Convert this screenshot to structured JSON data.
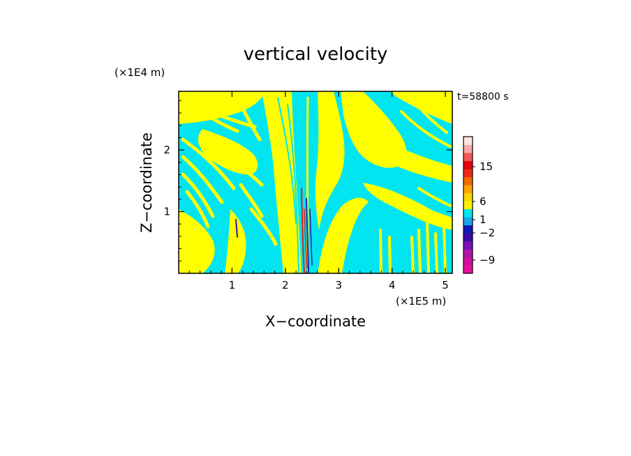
{
  "chart_data": {
    "type": "heatmap",
    "title": "vertical velocity",
    "xlabel": "X−coordinate",
    "ylabel": "Z−coordinate",
    "x_unit_label": "(×1E5 m)",
    "y_unit_label": "(×1E4 m)",
    "time_label": "t=58800 s",
    "xlim": [
      0,
      5.13
    ],
    "ylim": [
      0,
      2.95
    ],
    "x_ticks": [
      {
        "value": 1,
        "label": "1"
      },
      {
        "value": 2,
        "label": "2"
      },
      {
        "value": 3,
        "label": "3"
      },
      {
        "value": 4,
        "label": "4"
      },
      {
        "value": 5,
        "label": "5"
      }
    ],
    "y_ticks": [
      {
        "value": 1,
        "label": "1"
      },
      {
        "value": 2,
        "label": "2"
      }
    ],
    "colorbar": {
      "bands": [
        {
          "color": "#e8109a"
        },
        {
          "color": "#d2109e"
        },
        {
          "color": "#b016a8"
        },
        {
          "color": "#7a10b8"
        },
        {
          "color": "#3a0aa8"
        },
        {
          "color": "#1418b4"
        },
        {
          "color": "#1aa6e8"
        },
        {
          "color": "#00e6f0"
        },
        {
          "color": "#fff200"
        },
        {
          "color": "#ffd400"
        },
        {
          "color": "#ffa500"
        },
        {
          "color": "#f06a00"
        },
        {
          "color": "#f02818"
        },
        {
          "color": "#e80010"
        },
        {
          "color": "#f05a5a"
        },
        {
          "color": "#f7aaaa"
        },
        {
          "color": "#fde4e4"
        }
      ],
      "labels": [
        {
          "value": -9,
          "text": "−9"
        },
        {
          "value": -2,
          "text": "−2"
        },
        {
          "value": 1,
          "text": "1"
        },
        {
          "value": 6,
          "text": "6"
        },
        {
          "value": 15,
          "text": "15"
        }
      ]
    },
    "colors": {
      "positive": "#ffff00",
      "negative": "#00e5f0",
      "strong_positive": "#e0201c",
      "strong_negative": "#2b1aa8"
    }
  }
}
